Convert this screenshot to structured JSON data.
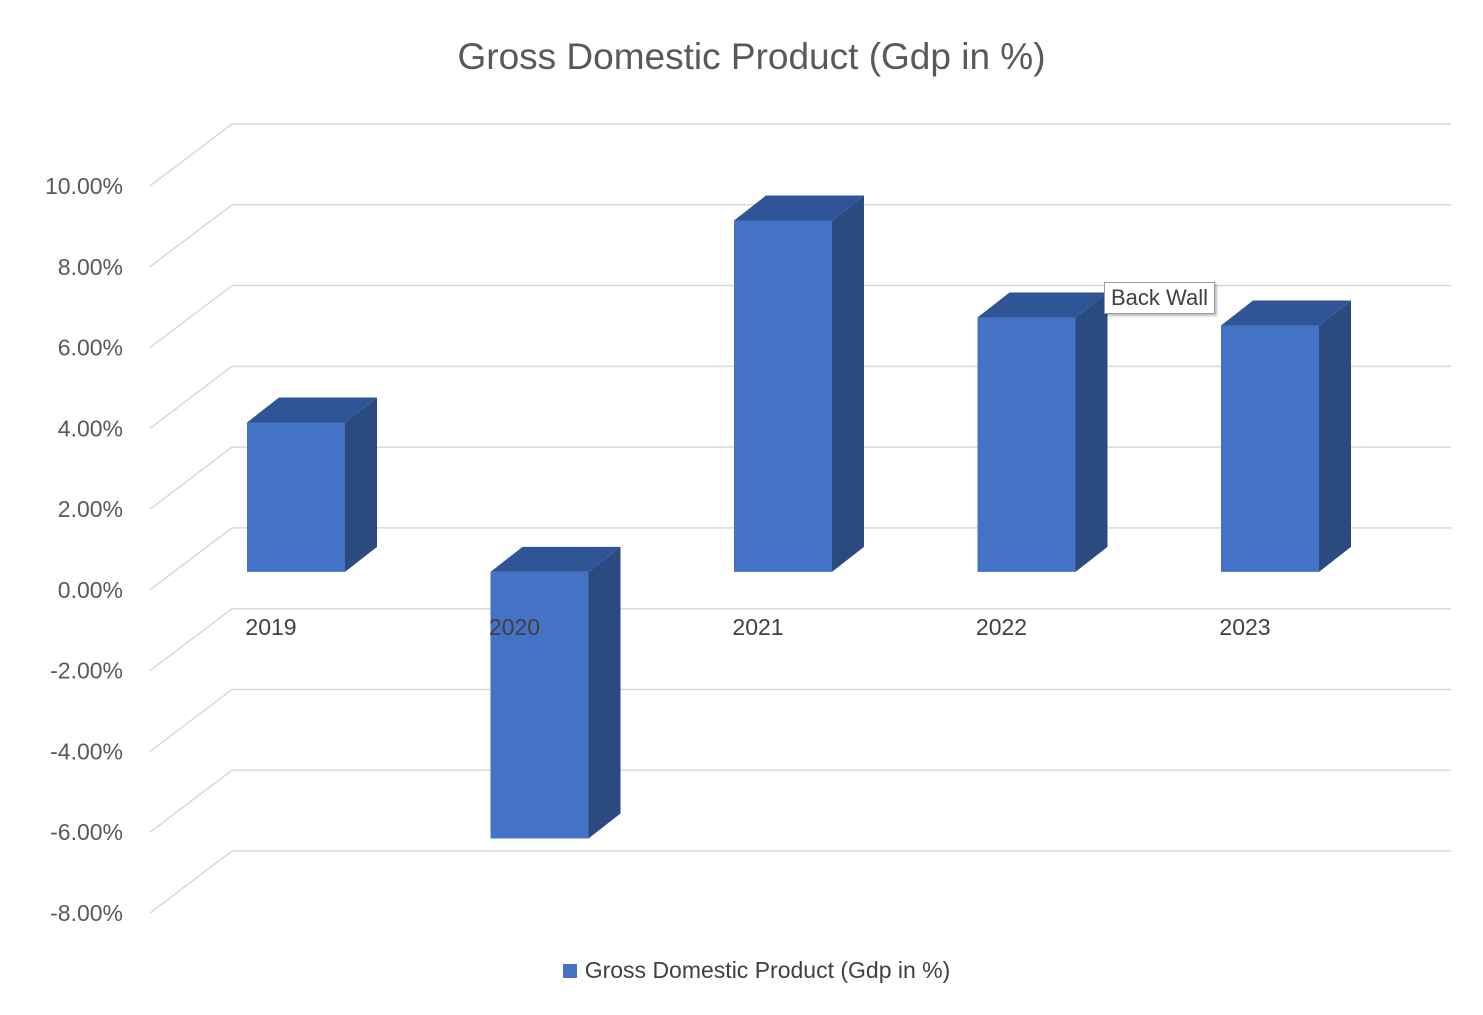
{
  "chart_data": {
    "type": "bar",
    "title": "Gross Domestic Product (Gdp in %)",
    "categories": [
      "2019",
      "2020",
      "2021",
      "2022",
      "2023"
    ],
    "series": [
      {
        "name": "Gross Domestic Product (Gdp in %)",
        "values": [
          3.7,
          -6.6,
          8.7,
          6.3,
          6.1
        ]
      }
    ],
    "ylim": [
      -8,
      10
    ],
    "yticks": [
      "10.00%",
      "8.00%",
      "6.00%",
      "4.00%",
      "2.00%",
      "0.00%",
      "-2.00%",
      "-4.00%",
      "-6.00%",
      "-8.00%"
    ],
    "grid": true,
    "legend_position": "bottom",
    "colors": {
      "front": "#4472c4",
      "side": "#2a4a80",
      "top": "#2f5597",
      "grid": "#d9d9d9"
    }
  },
  "tooltip": {
    "text": "Back Wall"
  }
}
